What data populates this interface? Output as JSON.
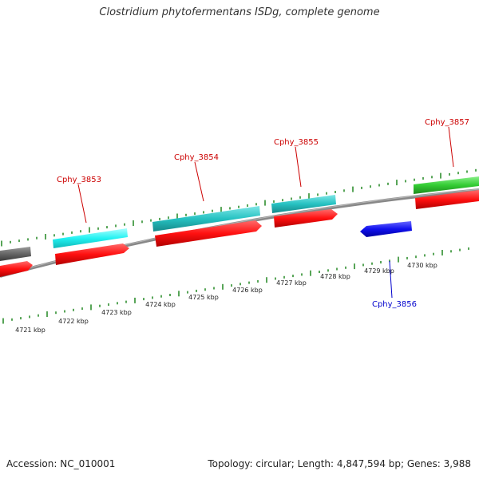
{
  "title": "Clostridium phytofermentans ISDg, complete genome",
  "footer": {
    "accession": "Accession: NC_010001",
    "topology": "Topology: circular; Length: 4,847,594 bp; Genes: 3,988"
  },
  "colors": {
    "backbone": "#888888",
    "tick": "#2f8f2f",
    "forward_cds": "#ff0000",
    "reverse_cds": "#0000dd",
    "gene_label_forward": "#cc0000",
    "gene_label_reverse": "#0000cc",
    "cog_cyan_light": "#33ffff",
    "cog_cyan": "#33cccc",
    "cog_green": "#33cc33",
    "cog_gray": "#666666"
  },
  "scale_labels": [
    "4721 kbp",
    "4722 kbp",
    "4723 kbp",
    "4724 kbp",
    "4725 kbp",
    "4726 kbp",
    "4727 kbp",
    "4728 kbp",
    "4729 kbp",
    "4730 kbp"
  ],
  "genes": [
    {
      "name": "Cphy_3853",
      "strand": "forward"
    },
    {
      "name": "Cphy_3854",
      "strand": "forward"
    },
    {
      "name": "Cphy_3855",
      "strand": "forward"
    },
    {
      "name": "Cphy_3856",
      "strand": "reverse"
    },
    {
      "name": "Cphy_3857",
      "strand": "forward"
    }
  ]
}
